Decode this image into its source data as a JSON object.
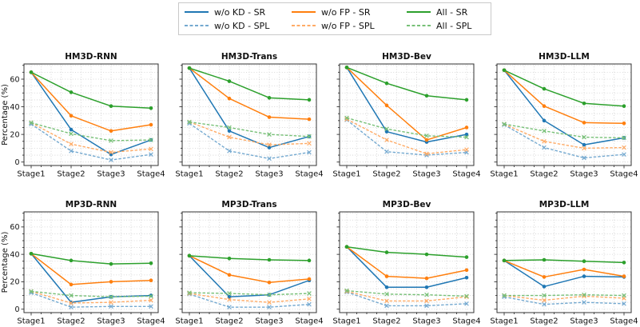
{
  "legend": {
    "entries": [
      {
        "label": "w/o KD - SR",
        "color": "#1f77b4",
        "dash": false
      },
      {
        "label": "w/o FP - SR",
        "color": "#ff7f0e",
        "dash": false
      },
      {
        "label": "All - SR",
        "color": "#2ca02c",
        "dash": false
      },
      {
        "label": "w/o KD - SPL",
        "color": "#74a9d0",
        "dash": true
      },
      {
        "label": "w/o FP - SPL",
        "color": "#ffab66",
        "dash": true
      },
      {
        "label": "All - SPL",
        "color": "#77c077",
        "dash": true
      }
    ]
  },
  "axis": {
    "ylabel": "Percentage (%)",
    "yticks": [
      0,
      20,
      40,
      60
    ],
    "ylim": [
      -2.5,
      71
    ],
    "minor_step": 5,
    "grid": true,
    "categories": [
      "Stage1",
      "Stage2",
      "Stage3",
      "Stage4"
    ]
  },
  "chart_data": [
    {
      "type": "line",
      "title": "HM3D-RNN",
      "ylabel": "Percentage (%)",
      "categories": [
        "Stage1",
        "Stage2",
        "Stage3",
        "Stage4"
      ],
      "ylim": [
        -2.5,
        71
      ],
      "yticks": [
        0,
        20,
        40,
        60
      ],
      "series": [
        {
          "name": "w/o KD - SR",
          "color": "#1f77b4",
          "style": "solid",
          "marker": "circle",
          "values": [
            65,
            23.5,
            5.5,
            16
          ]
        },
        {
          "name": "w/o KD - SPL",
          "color": "#74a9d0",
          "style": "dashed",
          "marker": "x",
          "values": [
            27.5,
            8,
            1.5,
            5.5
          ]
        },
        {
          "name": "w/o FP - SR",
          "color": "#ff7f0e",
          "style": "solid",
          "marker": "circle",
          "values": [
            65,
            33.5,
            22.5,
            27
          ]
        },
        {
          "name": "w/o FP - SPL",
          "color": "#ffab66",
          "style": "dashed",
          "marker": "x",
          "values": [
            28.5,
            13,
            7,
            9.5
          ]
        },
        {
          "name": "All - SR",
          "color": "#2ca02c",
          "style": "solid",
          "marker": "circle",
          "values": [
            65,
            50.5,
            40.5,
            39
          ]
        },
        {
          "name": "All - SPL",
          "color": "#77c077",
          "style": "dashed",
          "marker": "x",
          "values": [
            28.5,
            20.5,
            15.5,
            16
          ]
        }
      ]
    },
    {
      "type": "line",
      "title": "HM3D-Trans",
      "ylabel": "Percentage (%)",
      "categories": [
        "Stage1",
        "Stage2",
        "Stage3",
        "Stage4"
      ],
      "ylim": [
        -2.5,
        71
      ],
      "yticks": [
        0,
        20,
        40,
        60
      ],
      "series": [
        {
          "name": "w/o KD - SR",
          "color": "#1f77b4",
          "style": "solid",
          "marker": "circle",
          "values": [
            68,
            22.5,
            10.5,
            18.5
          ]
        },
        {
          "name": "w/o KD - SPL",
          "color": "#74a9d0",
          "style": "dashed",
          "marker": "x",
          "values": [
            28,
            8,
            2.5,
            7
          ]
        },
        {
          "name": "w/o FP - SR",
          "color": "#ff7f0e",
          "style": "solid",
          "marker": "circle",
          "values": [
            68,
            46,
            32.5,
            31
          ]
        },
        {
          "name": "w/o FP - SPL",
          "color": "#ffab66",
          "style": "dashed",
          "marker": "x",
          "values": [
            29,
            18,
            12.5,
            13.5
          ]
        },
        {
          "name": "All - SR",
          "color": "#2ca02c",
          "style": "solid",
          "marker": "circle",
          "values": [
            68,
            58.5,
            46.5,
            45
          ]
        },
        {
          "name": "All - SPL",
          "color": "#77c077",
          "style": "dashed",
          "marker": "x",
          "values": [
            29,
            25,
            20,
            18.5
          ]
        }
      ]
    },
    {
      "type": "line",
      "title": "HM3D-Bev",
      "ylabel": "Percentage (%)",
      "categories": [
        "Stage1",
        "Stage2",
        "Stage3",
        "Stage4"
      ],
      "ylim": [
        -2.5,
        71
      ],
      "yticks": [
        0,
        20,
        40,
        60
      ],
      "series": [
        {
          "name": "w/o KD - SR",
          "color": "#1f77b4",
          "style": "solid",
          "marker": "circle",
          "values": [
            68.5,
            22,
            14.5,
            20
          ]
        },
        {
          "name": "w/o KD - SPL",
          "color": "#74a9d0",
          "style": "dashed",
          "marker": "x",
          "values": [
            30.5,
            7.5,
            5,
            7
          ]
        },
        {
          "name": "w/o FP - SR",
          "color": "#ff7f0e",
          "style": "solid",
          "marker": "circle",
          "values": [
            68.5,
            41,
            16,
            25
          ]
        },
        {
          "name": "w/o FP - SPL",
          "color": "#ffab66",
          "style": "dashed",
          "marker": "x",
          "values": [
            31,
            16,
            6,
            9
          ]
        },
        {
          "name": "All - SR",
          "color": "#2ca02c",
          "style": "solid",
          "marker": "circle",
          "values": [
            68.5,
            57,
            48,
            45
          ]
        },
        {
          "name": "All - SPL",
          "color": "#77c077",
          "style": "dashed",
          "marker": "x",
          "values": [
            32,
            24,
            19,
            18
          ]
        }
      ]
    },
    {
      "type": "line",
      "title": "HM3D-LLM",
      "ylabel": "Percentage (%)",
      "categories": [
        "Stage1",
        "Stage2",
        "Stage3",
        "Stage4"
      ],
      "ylim": [
        -2.5,
        71
      ],
      "yticks": [
        0,
        20,
        40,
        60
      ],
      "series": [
        {
          "name": "w/o KD - SR",
          "color": "#1f77b4",
          "style": "solid",
          "marker": "circle",
          "values": [
            66.5,
            30,
            12.5,
            17.5
          ]
        },
        {
          "name": "w/o KD - SPL",
          "color": "#74a9d0",
          "style": "dashed",
          "marker": "x",
          "values": [
            27,
            10.5,
            3,
            5.5
          ]
        },
        {
          "name": "w/o FP - SR",
          "color": "#ff7f0e",
          "style": "solid",
          "marker": "circle",
          "values": [
            66.5,
            40.5,
            28.5,
            28
          ]
        },
        {
          "name": "w/o FP - SPL",
          "color": "#ffab66",
          "style": "dashed",
          "marker": "x",
          "values": [
            27.5,
            15,
            10,
            10.5
          ]
        },
        {
          "name": "All - SR",
          "color": "#2ca02c",
          "style": "solid",
          "marker": "circle",
          "values": [
            66.5,
            53,
            42.5,
            40.5
          ]
        },
        {
          "name": "All - SPL",
          "color": "#77c077",
          "style": "dashed",
          "marker": "x",
          "values": [
            27.5,
            22.5,
            18,
            17.5
          ]
        }
      ]
    },
    {
      "type": "line",
      "title": "MP3D-RNN",
      "ylabel": "Percentage (%)",
      "categories": [
        "Stage1",
        "Stage2",
        "Stage3",
        "Stage4"
      ],
      "ylim": [
        -2.5,
        71
      ],
      "yticks": [
        0,
        20,
        40,
        60
      ],
      "series": [
        {
          "name": "w/o KD - SR",
          "color": "#1f77b4",
          "style": "solid",
          "marker": "circle",
          "values": [
            40.5,
            5,
            9,
            10
          ]
        },
        {
          "name": "w/o KD - SPL",
          "color": "#74a9d0",
          "style": "dashed",
          "marker": "x",
          "values": [
            12,
            1.5,
            2,
            2
          ]
        },
        {
          "name": "w/o FP - SR",
          "color": "#ff7f0e",
          "style": "solid",
          "marker": "circle",
          "values": [
            40.5,
            18,
            20,
            21
          ]
        },
        {
          "name": "w/o FP - SPL",
          "color": "#ffab66",
          "style": "dashed",
          "marker": "x",
          "values": [
            13,
            4.5,
            5,
            6.5
          ]
        },
        {
          "name": "All - SR",
          "color": "#2ca02c",
          "style": "solid",
          "marker": "circle",
          "values": [
            40.5,
            35.5,
            33,
            33.5
          ]
        },
        {
          "name": "All - SPL",
          "color": "#77c077",
          "style": "dashed",
          "marker": "x",
          "values": [
            13,
            10,
            9,
            9.5
          ]
        }
      ]
    },
    {
      "type": "line",
      "title": "MP3D-Trans",
      "ylabel": "Percentage (%)",
      "categories": [
        "Stage1",
        "Stage2",
        "Stage3",
        "Stage4"
      ],
      "ylim": [
        -2.5,
        71
      ],
      "yticks": [
        0,
        20,
        40,
        60
      ],
      "series": [
        {
          "name": "w/o KD - SR",
          "color": "#1f77b4",
          "style": "solid",
          "marker": "circle",
          "values": [
            39,
            9,
            10.5,
            21
          ]
        },
        {
          "name": "w/o KD - SPL",
          "color": "#74a9d0",
          "style": "dashed",
          "marker": "x",
          "values": [
            11,
            1.5,
            1.5,
            3.5
          ]
        },
        {
          "name": "w/o FP - SR",
          "color": "#ff7f0e",
          "style": "solid",
          "marker": "circle",
          "values": [
            39,
            25,
            19.5,
            22
          ]
        },
        {
          "name": "w/o FP - SPL",
          "color": "#ffab66",
          "style": "dashed",
          "marker": "x",
          "values": [
            11.5,
            7,
            5,
            7.5
          ]
        },
        {
          "name": "All - SR",
          "color": "#2ca02c",
          "style": "solid",
          "marker": "circle",
          "values": [
            39,
            37,
            36,
            35.5
          ]
        },
        {
          "name": "All - SPL",
          "color": "#77c077",
          "style": "dashed",
          "marker": "x",
          "values": [
            12,
            11.5,
            10.5,
            11.5
          ]
        }
      ]
    },
    {
      "type": "line",
      "title": "MP3D-Bev",
      "ylabel": "Percentage (%)",
      "categories": [
        "Stage1",
        "Stage2",
        "Stage3",
        "Stage4"
      ],
      "ylim": [
        -2.5,
        71
      ],
      "yticks": [
        0,
        20,
        40,
        60
      ],
      "series": [
        {
          "name": "w/o KD - SR",
          "color": "#1f77b4",
          "style": "solid",
          "marker": "circle",
          "values": [
            45.5,
            16,
            16,
            23
          ]
        },
        {
          "name": "w/o KD - SPL",
          "color": "#74a9d0",
          "style": "dashed",
          "marker": "x",
          "values": [
            12.5,
            2.5,
            2.5,
            4
          ]
        },
        {
          "name": "w/o FP - SR",
          "color": "#ff7f0e",
          "style": "solid",
          "marker": "circle",
          "values": [
            45.5,
            24,
            22.5,
            28.5
          ]
        },
        {
          "name": "w/o FP - SPL",
          "color": "#ffab66",
          "style": "dashed",
          "marker": "x",
          "values": [
            13,
            6,
            6,
            9
          ]
        },
        {
          "name": "All - SR",
          "color": "#2ca02c",
          "style": "solid",
          "marker": "circle",
          "values": [
            45.5,
            41.5,
            40,
            38
          ]
        },
        {
          "name": "All - SPL",
          "color": "#77c077",
          "style": "dashed",
          "marker": "x",
          "values": [
            13.5,
            11,
            10.5,
            9.5
          ]
        }
      ]
    },
    {
      "type": "line",
      "title": "MP3D-LLM",
      "ylabel": "Percentage (%)",
      "categories": [
        "Stage1",
        "Stage2",
        "Stage3",
        "Stage4"
      ],
      "ylim": [
        -2.5,
        71
      ],
      "yticks": [
        0,
        20,
        40,
        60
      ],
      "series": [
        {
          "name": "w/o KD - SR",
          "color": "#1f77b4",
          "style": "solid",
          "marker": "circle",
          "values": [
            35.5,
            16.5,
            24,
            23.5
          ]
        },
        {
          "name": "w/o KD - SPL",
          "color": "#74a9d0",
          "style": "dashed",
          "marker": "x",
          "values": [
            9,
            3.5,
            5,
            4
          ]
        },
        {
          "name": "w/o FP - SR",
          "color": "#ff7f0e",
          "style": "solid",
          "marker": "circle",
          "values": [
            35.5,
            23.5,
            29,
            24
          ]
        },
        {
          "name": "w/o FP - SPL",
          "color": "#ffab66",
          "style": "dashed",
          "marker": "x",
          "values": [
            10,
            6.5,
            9.5,
            8
          ]
        },
        {
          "name": "All - SR",
          "color": "#2ca02c",
          "style": "solid",
          "marker": "circle",
          "values": [
            35.5,
            36,
            35,
            34
          ]
        },
        {
          "name": "All - SPL",
          "color": "#77c077",
          "style": "dashed",
          "marker": "x",
          "values": [
            10,
            10,
            10.5,
            10
          ]
        }
      ]
    }
  ]
}
